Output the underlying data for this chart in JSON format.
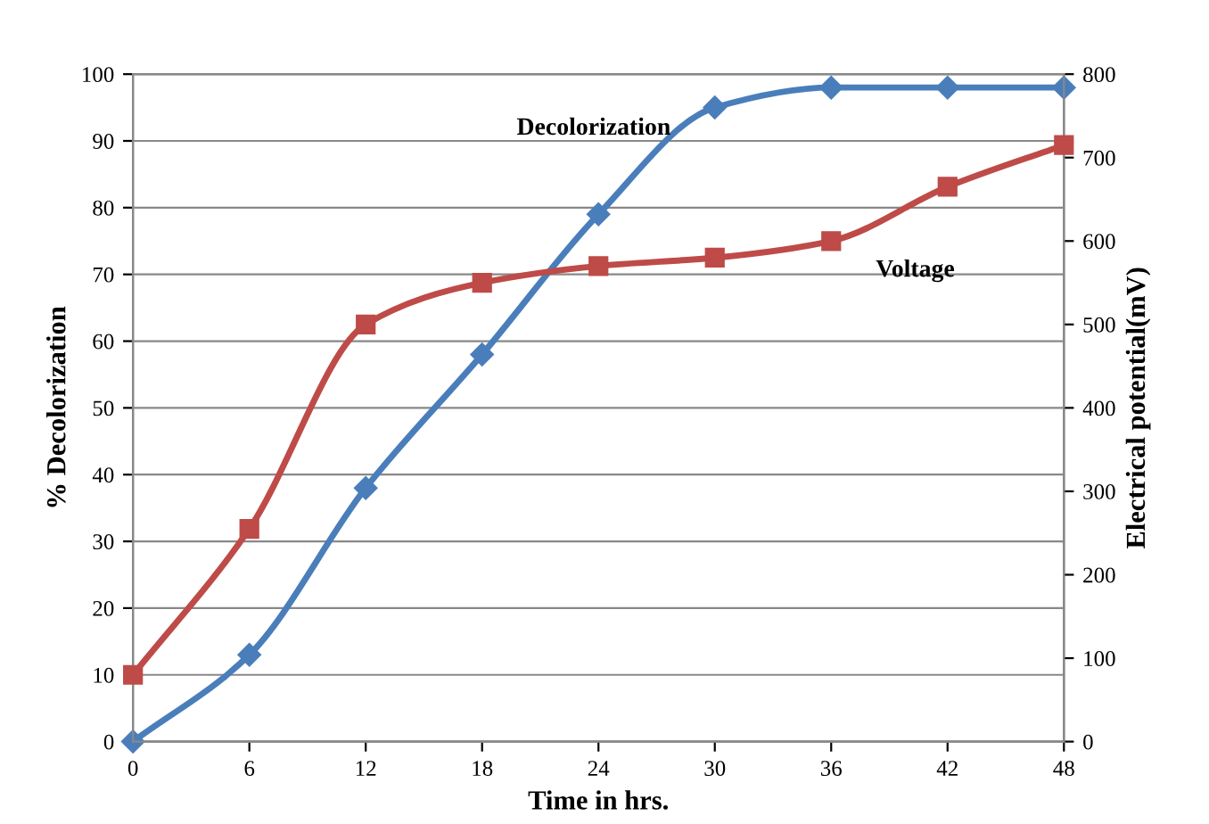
{
  "chart_data": {
    "type": "line",
    "xlabel": "Time in hrs.",
    "ylabel": "% Decolorization",
    "y2label": "Electrical potential(mV)",
    "x": [
      0,
      6,
      12,
      18,
      24,
      30,
      36,
      42,
      48
    ],
    "series": [
      {
        "name": "Decolorization",
        "color": "#4a7ebb",
        "marker": "diamond",
        "values": [
          0,
          13,
          38,
          58,
          79,
          95,
          98,
          98,
          98
        ]
      },
      {
        "name": "Voltage",
        "color": "#be4b48",
        "marker": "square",
        "axis": "y2",
        "values": [
          80,
          255,
          500,
          550,
          570,
          580,
          600,
          665,
          715
        ]
      }
    ],
    "xlim": [
      0,
      48
    ],
    "xticks": [
      0,
      6,
      12,
      18,
      24,
      30,
      36,
      42,
      48
    ],
    "ylim": [
      0,
      100
    ],
    "yticks": [
      0,
      10,
      20,
      30,
      40,
      50,
      60,
      70,
      80,
      90,
      100
    ],
    "y2lim": [
      0,
      800
    ],
    "y2ticks": [
      0,
      100,
      200,
      300,
      400,
      500,
      600,
      700,
      800
    ],
    "grid": "y",
    "legend": false,
    "line_style": "solid"
  }
}
